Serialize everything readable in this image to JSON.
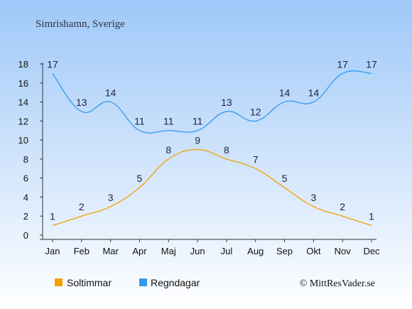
{
  "location_title": "Simrishamn, Sverige",
  "watermark": "© MittResVader.se",
  "colors": {
    "background_top": "#9ec8f8",
    "background_bottom": "#ffffff",
    "sun": "#f5a000",
    "rain": "#3399ee",
    "label": "#222244",
    "axis": "#333333"
  },
  "chart_data": {
    "type": "line",
    "x": [
      "Jan",
      "Feb",
      "Mar",
      "Apr",
      "Maj",
      "Jun",
      "Jul",
      "Aug",
      "Sep",
      "Okt",
      "Nov",
      "Dec"
    ],
    "series": [
      {
        "name": "Soltimmar",
        "values": [
          1,
          2,
          3,
          5,
          8,
          9,
          8,
          7,
          5,
          3,
          2,
          1
        ]
      },
      {
        "name": "Regndagar",
        "values": [
          17,
          13,
          14,
          11,
          11,
          11,
          13,
          12,
          14,
          14,
          17,
          17
        ]
      }
    ],
    "ylim": [
      0,
      18
    ],
    "yticks": [
      0,
      2,
      4,
      6,
      8,
      10,
      12,
      14,
      16,
      18
    ],
    "legend_position": "bottom-left",
    "grid": false,
    "data_labels": true
  }
}
